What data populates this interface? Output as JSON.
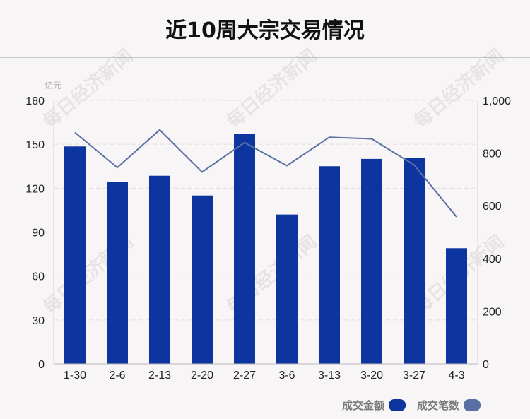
{
  "page": {
    "title": "近10周大宗交易情况"
  },
  "watermark": "每日经济新闻",
  "chart_data": {
    "type": "bar+line",
    "categories": [
      "1-30",
      "2-6",
      "2-13",
      "2-20",
      "2-27",
      "3-6",
      "3-13",
      "3-20",
      "3-27",
      "4-3"
    ],
    "series": [
      {
        "name": "成交金额",
        "type": "bar",
        "axis": "left",
        "color": "#0c35a0",
        "values": [
          148.5,
          124.5,
          128.5,
          115,
          157,
          102,
          135,
          140,
          140.5,
          79
        ]
      },
      {
        "name": "成交笔数",
        "type": "line",
        "axis": "right",
        "color": "#5a6fa3",
        "values": [
          878,
          745,
          888,
          728,
          840,
          752,
          860,
          854,
          755,
          558
        ]
      }
    ],
    "y_left": {
      "unit": "亿元",
      "range": [
        0,
        180
      ],
      "ticks": [
        "0",
        "30",
        "60",
        "90",
        "120",
        "150",
        "180"
      ]
    },
    "y_right": {
      "range": [
        0,
        1000
      ],
      "ticks": [
        "0",
        "200",
        "400",
        "600",
        "800",
        "1,000"
      ]
    },
    "grid": true,
    "legend": "bottom-right"
  }
}
